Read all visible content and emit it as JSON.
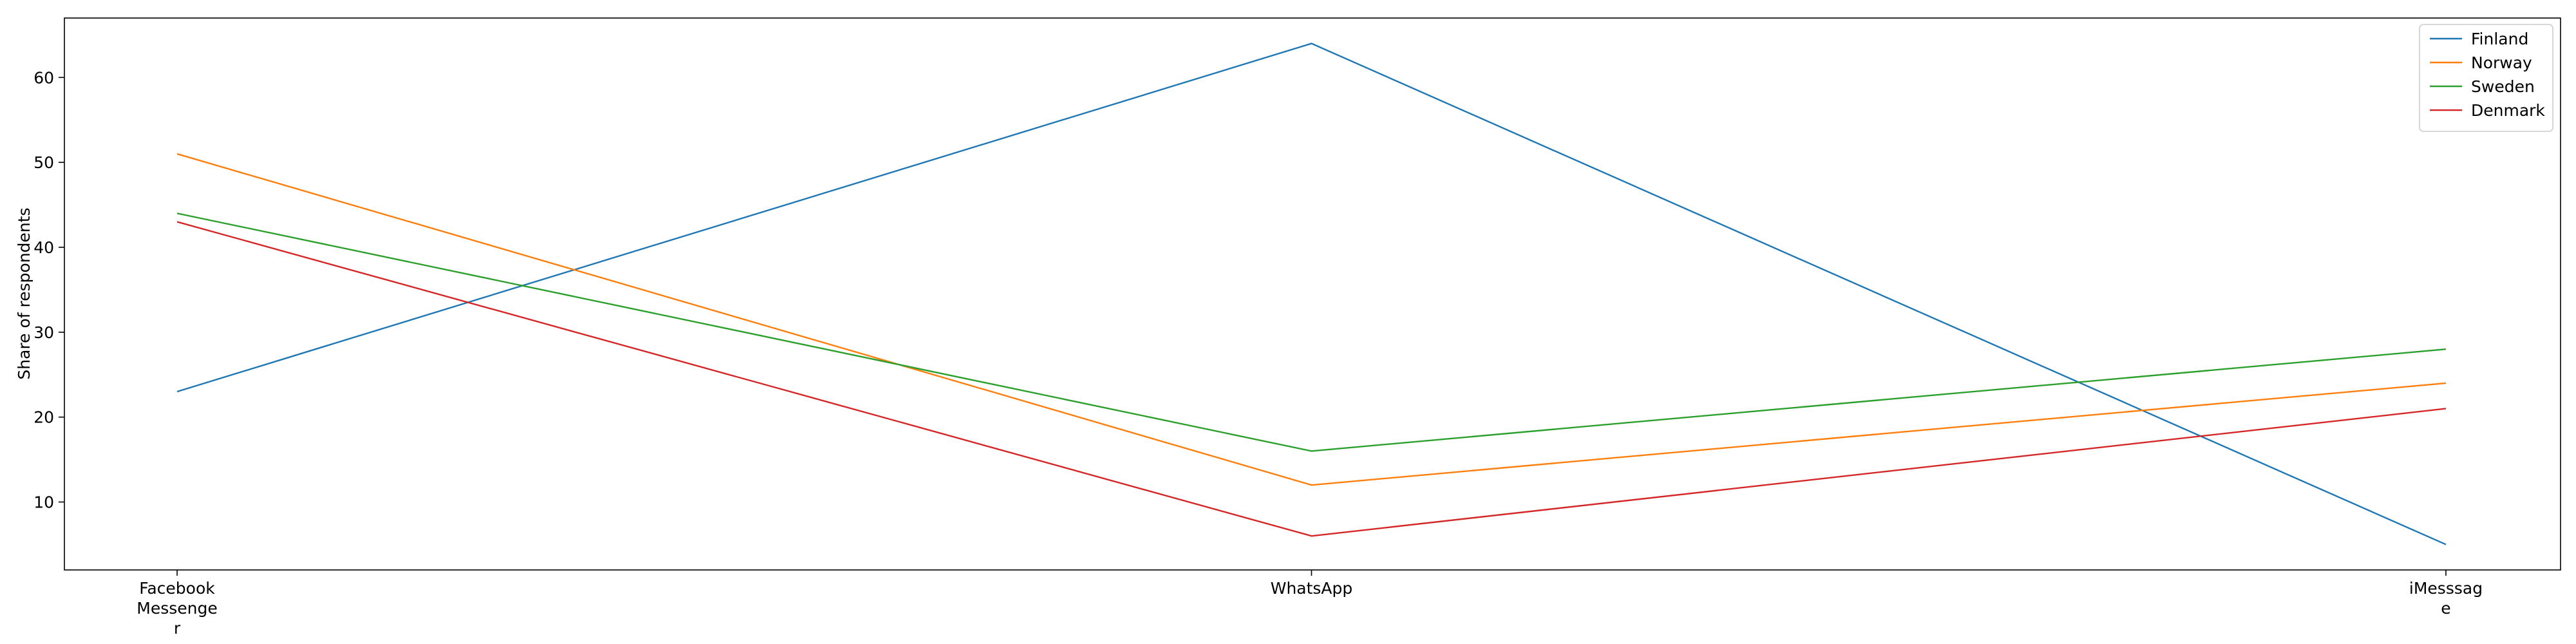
{
  "chart_data": {
    "type": "line",
    "title": "",
    "xlabel": "",
    "ylabel": "Share of respondents",
    "categories": [
      [
        "Facebook",
        "Messenge",
        "r"
      ],
      [
        "WhatsApp"
      ],
      [
        "iMesssag",
        "e"
      ]
    ],
    "ylim": [
      2,
      67
    ],
    "yticks": [
      10,
      20,
      30,
      40,
      50,
      60
    ],
    "grid": false,
    "legend_position": "top-right",
    "series": [
      {
        "name": "Finland",
        "color": "#1f77b4",
        "values": [
          23,
          64,
          5
        ]
      },
      {
        "name": "Norway",
        "color": "#ff7f0e",
        "values": [
          51,
          12,
          24
        ]
      },
      {
        "name": "Sweden",
        "color": "#2ca02c",
        "values": [
          44,
          16,
          28
        ]
      },
      {
        "name": "Denmark",
        "color": "#d62728",
        "values": [
          43,
          6,
          21
        ]
      }
    ]
  }
}
